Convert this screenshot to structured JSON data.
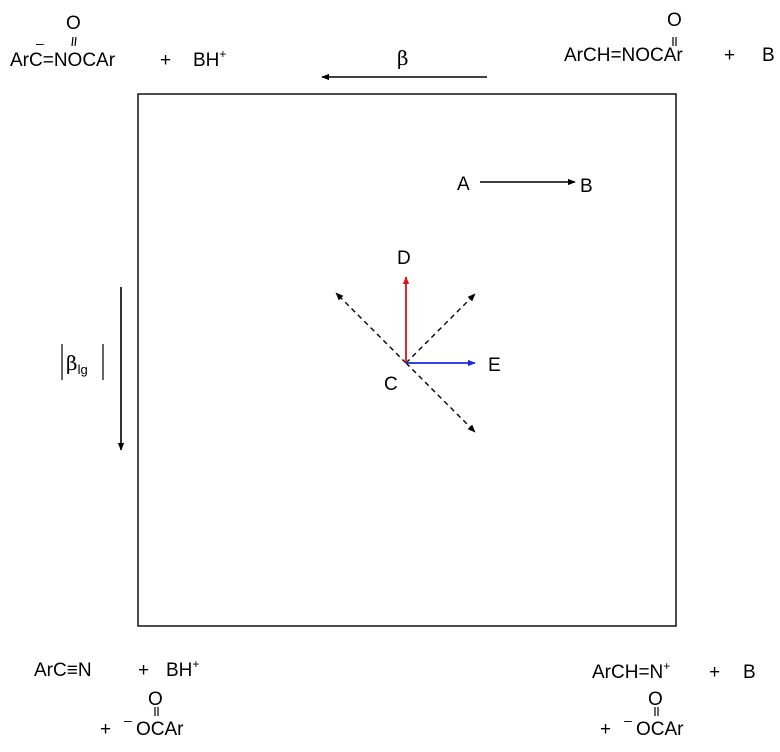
{
  "corners": {
    "top_left": {
      "prefix": "Ar",
      "carbanion_c": "C",
      "rest": "=NOCAr",
      "plus": "+",
      "base": "BH",
      "base_charge": "+",
      "carbonyl_o": "O",
      "minus": "–"
    },
    "top_right": {
      "formula": "ArCH=NOCAr",
      "plus": "+",
      "base": "B",
      "carbonyl_o": "O"
    },
    "bottom_left": {
      "formula_a": "ArC",
      "triple": "≡",
      "formula_b": "N",
      "plus": "+",
      "base": "BH",
      "base_charge": "+",
      "carbonyl_o": "O",
      "leaving_plus": "+",
      "leaving_minus": "–",
      "leaving_group": "OCAr"
    },
    "bottom_right": {
      "formula": "ArCH=N",
      "formula_charge": "+",
      "plus": "+",
      "base": "B",
      "carbonyl_o": "O",
      "leaving_plus": "+",
      "leaving_minus": "–",
      "leaving_group": "OCAr"
    }
  },
  "axes": {
    "top_arrow_label": "β",
    "left_arrow_label": "β",
    "left_arrow_subscript": "lg"
  },
  "legend_arrow": {
    "from": "A",
    "to": "B"
  },
  "center": {
    "origin": "C",
    "up_label": "D",
    "right_label": "E"
  },
  "colors": {
    "up_arrow": "#e0101a",
    "right_arrow": "#1c28e0",
    "line": "#000000"
  }
}
